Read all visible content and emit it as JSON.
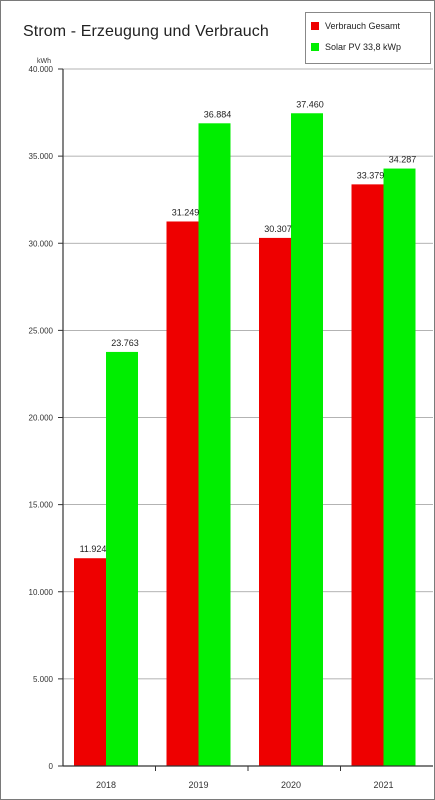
{
  "chart_data": {
    "type": "bar",
    "title": "Strom - Erzeugung und Verbrauch",
    "ylabel": "kWh",
    "ylim": [
      0,
      40000
    ],
    "yticks": [
      0,
      5000,
      10000,
      15000,
      20000,
      25000,
      30000,
      35000,
      40000
    ],
    "ytick_labels": [
      "0",
      "5.000",
      "10.000",
      "15.000",
      "20.000",
      "25.000",
      "30.000",
      "35.000",
      "40.000"
    ],
    "categories": [
      "2018",
      "2019",
      "2020",
      "2021"
    ],
    "legend_position": "top-right",
    "grid": true,
    "series": [
      {
        "name": "Verbrauch Gesamt",
        "color": "#ee0000",
        "values": [
          11924,
          31249,
          30307,
          33379
        ],
        "value_labels": [
          "11.924",
          "31.249",
          "30.307",
          "33.379"
        ]
      },
      {
        "name": "Solar PV 33,8 kWp",
        "color": "#00ee00",
        "values": [
          23763,
          36884,
          37460,
          34287
        ],
        "value_labels": [
          "23.763",
          "36.884",
          "37.460",
          "34.287"
        ]
      }
    ]
  }
}
